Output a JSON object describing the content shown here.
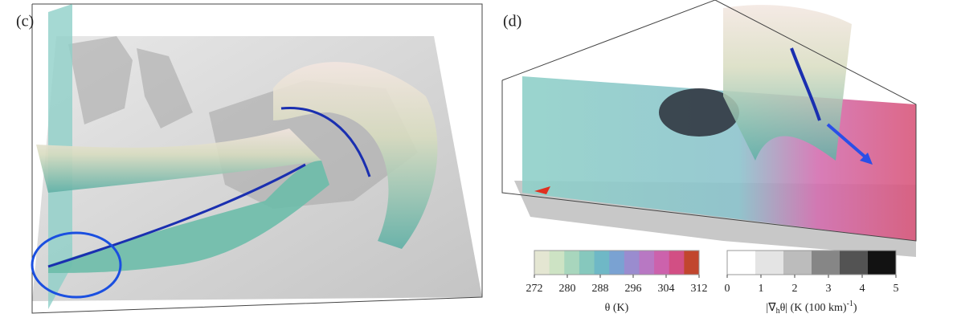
{
  "panels": [
    {
      "label": "(c)"
    },
    {
      "label": "(d)"
    }
  ],
  "colorbars": [
    {
      "ticks": [
        272,
        280,
        288,
        296,
        304,
        312
      ],
      "label": "θ (K)",
      "colors": [
        "#e4e6d2",
        "#cde3c4",
        "#a8d6bd",
        "#86c8bd",
        "#6fb8c6",
        "#7aa2d2",
        "#9a8ccf",
        "#b878c3",
        "#cc62ac",
        "#d24f84",
        "#c1462e"
      ]
    },
    {
      "ticks": [
        0,
        1,
        2,
        3,
        4,
        5
      ],
      "label_parts": [
        "|∇",
        "h",
        "θ| (K (100 km)",
        "-1",
        ")"
      ],
      "colors": [
        "#ffffff",
        "#e4e4e4",
        "#bcbcbc",
        "#868686",
        "#535353",
        "#121212"
      ]
    }
  ]
}
